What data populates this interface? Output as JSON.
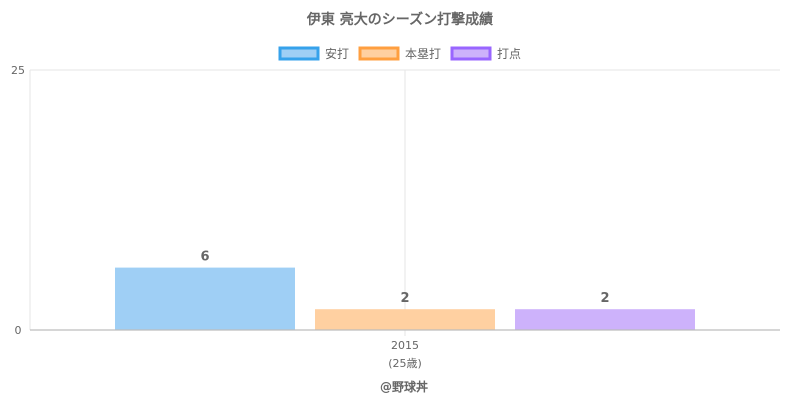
{
  "chart_data": {
    "type": "bar",
    "title": "伊東 亮大のシーズン打撃成績",
    "categories": [
      "2015"
    ],
    "category_sublabels": [
      "(25歳)"
    ],
    "series": [
      {
        "name": "安打",
        "values": [
          6
        ],
        "fill": "#9fcff5",
        "stroke": "#36a2eb"
      },
      {
        "name": "本塁打",
        "values": [
          2
        ],
        "fill": "#ffd0a1",
        "stroke": "#ff9f40"
      },
      {
        "name": "打点",
        "values": [
          2
        ],
        "fill": "#cdb2fb",
        "stroke": "#9966ff"
      }
    ],
    "ylim": [
      0,
      25
    ],
    "y_ticks": [
      0,
      25
    ],
    "grid": true,
    "legend_position": "top"
  },
  "credit": "@野球丼"
}
